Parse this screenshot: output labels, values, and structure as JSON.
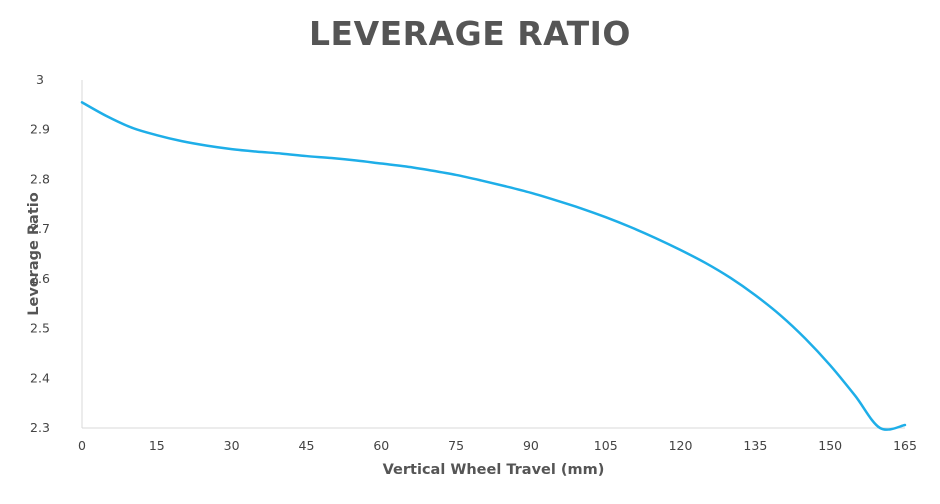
{
  "chart_data": {
    "type": "line",
    "title": "LEVERAGE RATIO",
    "xlabel": "Vertical Wheel Travel (mm)",
    "ylabel": "Leverage Ratio",
    "xlim": [
      0,
      165
    ],
    "ylim": [
      2.3,
      3.0
    ],
    "x_ticks": [
      "0",
      "15",
      "30",
      "45",
      "60",
      "75",
      "90",
      "105",
      "120",
      "135",
      "150",
      "165"
    ],
    "y_ticks": [
      "3",
      "2.9",
      "2.8",
      "2.7",
      "2.6",
      "2.5",
      "2.4",
      "2.3"
    ],
    "grid": false,
    "legend": "none",
    "series": [
      {
        "color": "#1eaee8",
        "x": [
          0,
          5,
          10,
          15,
          20,
          25,
          30,
          35,
          40,
          45,
          50,
          55,
          60,
          65,
          70,
          75,
          80,
          85,
          90,
          95,
          100,
          105,
          110,
          115,
          120,
          125,
          130,
          135,
          140,
          145,
          150,
          155,
          160,
          165
        ],
        "y": [
          2.955,
          2.927,
          2.904,
          2.889,
          2.877,
          2.868,
          2.861,
          2.856,
          2.852,
          2.847,
          2.843,
          2.838,
          2.832,
          2.826,
          2.818,
          2.809,
          2.798,
          2.786,
          2.773,
          2.758,
          2.742,
          2.724,
          2.704,
          2.682,
          2.658,
          2.632,
          2.602,
          2.567,
          2.527,
          2.48,
          2.426,
          2.365,
          2.3,
          2.306
        ]
      }
    ]
  }
}
